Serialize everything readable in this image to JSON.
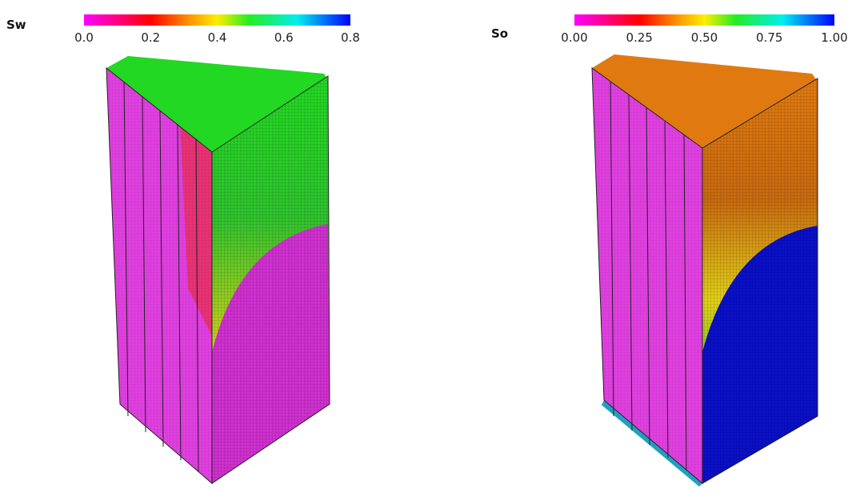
{
  "panels": [
    {
      "label": "Sw",
      "ticks": [
        "0.0",
        "0.2",
        "0.4",
        "0.6",
        "0.8"
      ]
    },
    {
      "label": "So",
      "ticks": [
        "0.00",
        "0.25",
        "0.50",
        "0.75",
        "1.00"
      ]
    }
  ]
}
